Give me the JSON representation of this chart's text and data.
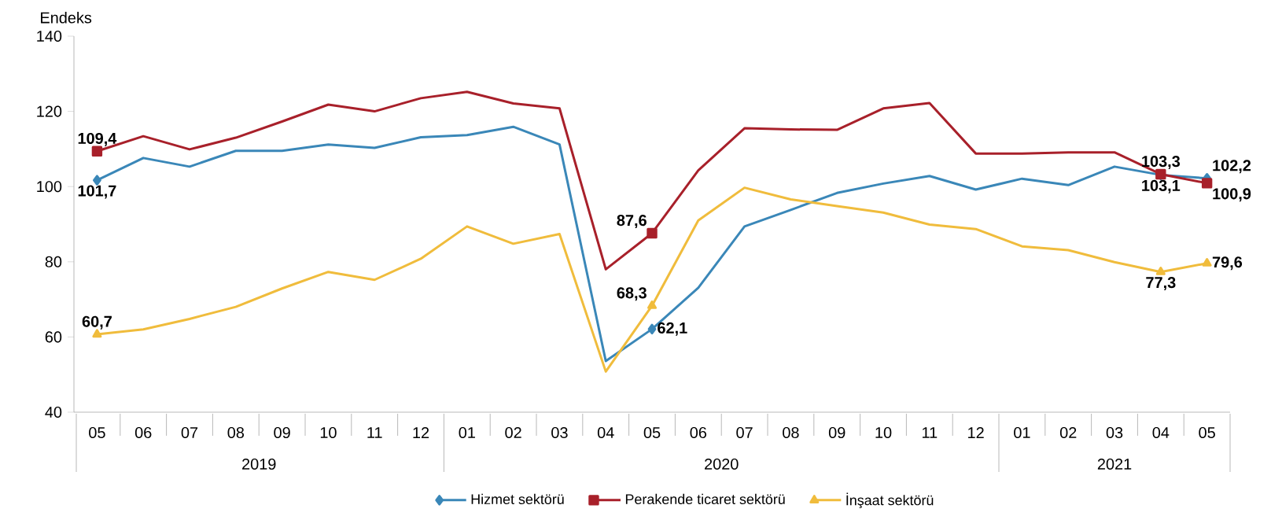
{
  "chart_data": {
    "type": "line",
    "ylabel": "Endeks",
    "categories": [
      "05",
      "06",
      "07",
      "08",
      "09",
      "10",
      "11",
      "12",
      "01",
      "02",
      "03",
      "04",
      "05",
      "06",
      "07",
      "08",
      "09",
      "10",
      "11",
      "12",
      "01",
      "02",
      "03",
      "04",
      "05"
    ],
    "annotations": [
      "2019",
      "2020",
      "2021"
    ],
    "ylim": [
      40,
      140
    ],
    "yticks": [
      40,
      60,
      80,
      100,
      120,
      140
    ],
    "grid": false,
    "legend": "bottom",
    "series": [
      {
        "name": "Hizmet sektörü",
        "color": "#3a87b8",
        "values": [
          101.7,
          107.6,
          105.3,
          109.5,
          109.5,
          111.2,
          110.3,
          113.1,
          113.7,
          115.9,
          111.2,
          53.6,
          62.1,
          73.1,
          89.4,
          93.8,
          98.3,
          100.8,
          102.8,
          99.2,
          102.1,
          100.4,
          105.3,
          103.1,
          102.2
        ],
        "value_labels": [
          "101,7",
          null,
          null,
          null,
          null,
          null,
          null,
          null,
          null,
          null,
          null,
          null,
          "62,1",
          null,
          null,
          null,
          null,
          null,
          null,
          null,
          null,
          null,
          null,
          "103,1",
          "102,2"
        ]
      },
      {
        "name": "Perakende ticaret sektörü",
        "color": "#a8202a",
        "values": [
          109.4,
          113.4,
          109.9,
          113.0,
          117.3,
          121.8,
          120.0,
          123.5,
          125.2,
          122.1,
          120.8,
          78.0,
          87.6,
          104.3,
          115.5,
          115.2,
          115.1,
          120.8,
          122.2,
          108.8,
          108.8,
          109.1,
          109.1,
          103.3,
          100.9
        ],
        "value_labels": [
          "109,4",
          null,
          null,
          null,
          null,
          null,
          null,
          null,
          null,
          null,
          null,
          null,
          "87,6",
          null,
          null,
          null,
          null,
          null,
          null,
          null,
          null,
          null,
          null,
          "103,3",
          "100,9"
        ]
      },
      {
        "name": "İnşaat sektörü",
        "color": "#f0bc3c",
        "values": [
          60.7,
          62.0,
          64.8,
          68.0,
          72.9,
          77.3,
          75.2,
          80.8,
          89.4,
          84.8,
          87.4,
          50.8,
          68.3,
          91.0,
          99.7,
          96.6,
          94.8,
          93.1,
          89.9,
          88.7,
          84.1,
          83.1,
          79.9,
          77.3,
          79.6
        ],
        "value_labels": [
          "60,7",
          null,
          null,
          null,
          null,
          null,
          null,
          null,
          null,
          null,
          null,
          null,
          "68,3",
          null,
          null,
          null,
          null,
          null,
          null,
          null,
          null,
          null,
          null,
          "77,3",
          "79,6"
        ]
      }
    ]
  }
}
